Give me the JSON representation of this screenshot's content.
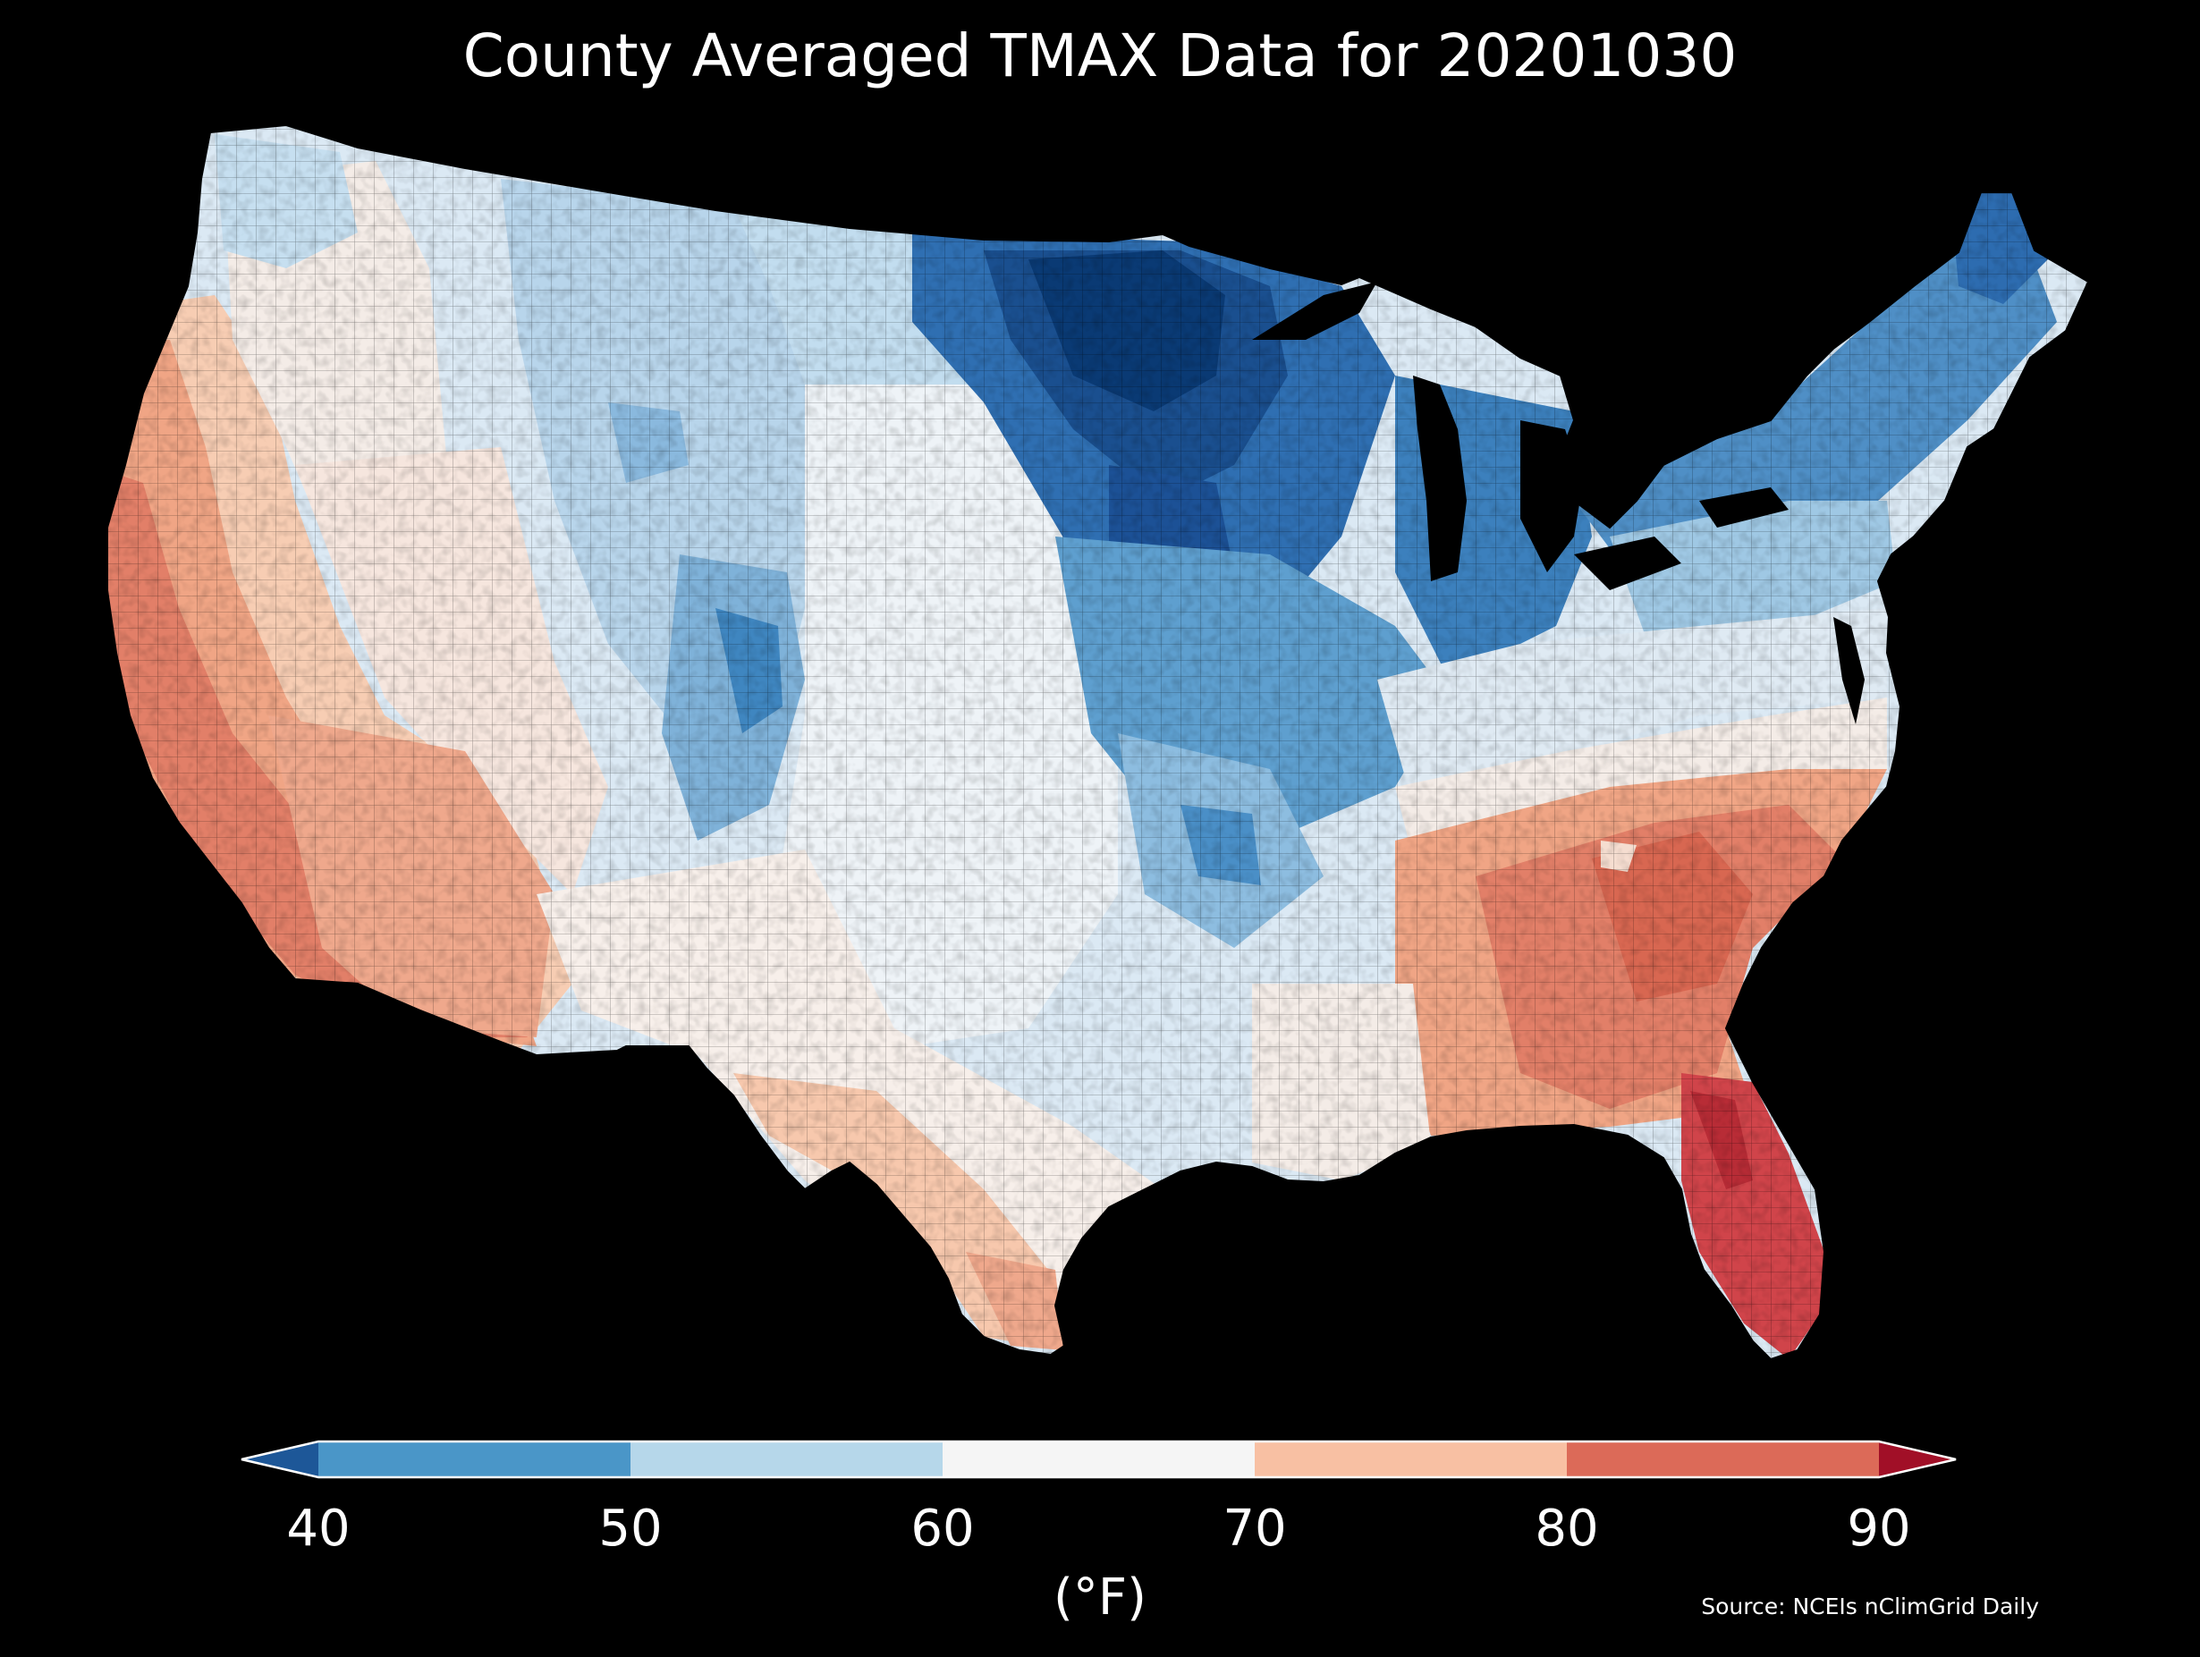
{
  "title": "County Averaged TMAX Data for 20201030",
  "colorbar": {
    "ticks": [
      "40",
      "50",
      "60",
      "70",
      "80",
      "90"
    ],
    "label": "(°F)",
    "bins": [
      {
        "from": 40,
        "to": 50,
        "color": "#4a96c8"
      },
      {
        "from": 50,
        "to": 60,
        "color": "#b6d7ea"
      },
      {
        "from": 60,
        "to": 70,
        "color": "#f5f5f5"
      },
      {
        "from": 70,
        "to": 80,
        "color": "#f8c0a3"
      },
      {
        "from": 80,
        "to": 90,
        "color": "#dc6a58"
      }
    ],
    "under_color": "#1d5798",
    "over_color": "#a10f27",
    "outline_color": "#ffffff"
  },
  "map": {
    "description_colors": {
      "cold_core": "#0a3a74",
      "cold": "#2f6fb2",
      "cool": "#6ea7d3",
      "mild_cool": "#c6dff0",
      "neutral": "#f2f2f2",
      "warm": "#f6c3a6",
      "hot": "#e27f68",
      "very_hot": "#c8363a"
    },
    "background": "#000000"
  },
  "source": "Source: NCEIs nClimGrid Daily"
}
